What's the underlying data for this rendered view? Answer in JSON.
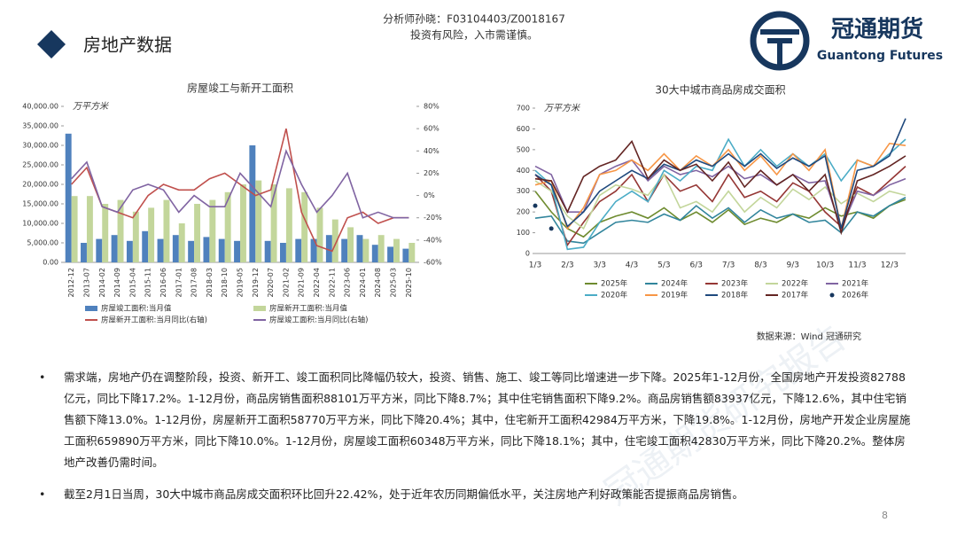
{
  "header": {
    "title": "房地产数据",
    "disclaimer": [
      "分析师孙晓：F03104403/Z0018167",
      "投资有风险，入市需谨慎。"
    ],
    "logo_cn": "冠通期货",
    "logo_en": "Guantong Futures"
  },
  "chart_data": [
    {
      "type": "bar",
      "title": "房屋竣工与新开工面积",
      "ylabel": "万平方米",
      "categories": [
        "2012-12",
        "2013-07",
        "2014-02",
        "2014-09",
        "2015-04",
        "2015-11",
        "2016-06",
        "2017-01",
        "2017-08",
        "2018-03",
        "2018-10",
        "2019-05",
        "2019-12",
        "2020-07",
        "2021-02",
        "2021-09",
        "2022-04",
        "2022-11",
        "2023-06",
        "2024-01",
        "2024-08",
        "2025-03",
        "2025-10"
      ],
      "series": [
        {
          "name": "房屋竣工面积:当月值",
          "type": "bar",
          "color": "#4f81bd",
          "values": [
            33000,
            5000,
            6000,
            7000,
            5500,
            8000,
            6000,
            7000,
            5500,
            6500,
            6000,
            5500,
            30000,
            5500,
            5000,
            6000,
            6000,
            7000,
            6000,
            7000,
            4500,
            4000,
            3500
          ]
        },
        {
          "name": "房屋新开工面积:当月值",
          "type": "bar",
          "color": "#c3d69b",
          "values": [
            17000,
            17000,
            15000,
            16000,
            13000,
            14000,
            16000,
            10000,
            15000,
            16000,
            18000,
            20000,
            21000,
            20000,
            19000,
            18000,
            14000,
            11000,
            9000,
            6000,
            7000,
            6000,
            5000
          ]
        },
        {
          "name": "房屋新开工面积:当月同比(右轴)",
          "type": "line",
          "axis": "y2",
          "color": "#c0504d",
          "values": [
            10,
            25,
            -10,
            -15,
            -20,
            0,
            10,
            5,
            5,
            15,
            20,
            10,
            0,
            5,
            60,
            -15,
            -45,
            -50,
            -20,
            -15,
            -25,
            -20,
            -20
          ]
        },
        {
          "name": "房屋竣工面积:当月同比(右轴)",
          "type": "line",
          "axis": "y2",
          "color": "#8064a2",
          "values": [
            15,
            30,
            -10,
            -15,
            5,
            10,
            5,
            -15,
            0,
            -10,
            -10,
            20,
            5,
            -10,
            40,
            10,
            -15,
            0,
            20,
            -20,
            -15,
            -20,
            -20
          ]
        }
      ],
      "ylim": [
        0,
        40000
      ],
      "yticks": [
        {
          "value": 0,
          "label": "0.00"
        },
        {
          "value": 5000,
          "label": "5,000.00"
        },
        {
          "value": 10000,
          "label": "10,000.00"
        },
        {
          "value": 15000,
          "label": "15,000.00"
        },
        {
          "value": 20000,
          "label": "20,000.00"
        },
        {
          "value": 25000,
          "label": "25,000.00"
        },
        {
          "value": 30000,
          "label": "30,000.00"
        },
        {
          "value": 35000,
          "label": "35,000.00"
        },
        {
          "value": 40000,
          "label": "40,000.00"
        }
      ],
      "y2lim": [
        -60,
        80
      ],
      "y2ticks": [
        {
          "value": -60,
          "label": "-60%"
        },
        {
          "value": -40,
          "label": "-40%"
        },
        {
          "value": -20,
          "label": "-20%"
        },
        {
          "value": 0,
          "label": "0%"
        },
        {
          "value": 20,
          "label": "20%"
        },
        {
          "value": 40,
          "label": "40%"
        },
        {
          "value": 60,
          "label": "60%"
        },
        {
          "value": 80,
          "label": "80%"
        }
      ],
      "legend_columns": 2,
      "grid": false
    },
    {
      "type": "line",
      "title": "30大中城市商品房成交面积",
      "ylabel": "万平方米",
      "categories": [
        "1/3",
        null,
        "2/3",
        null,
        "3/3",
        null,
        "4/3",
        null,
        "5/3",
        null,
        "6/3",
        null,
        "7/3",
        null,
        "8/3",
        null,
        "9/3",
        null,
        "10/3",
        null,
        "11/3",
        null,
        "12/3",
        null
      ],
      "series": [
        {
          "name": "2025年",
          "color": "#6e8b2f",
          "values": [
            300,
            200,
            120,
            80,
            150,
            180,
            200,
            170,
            220,
            160,
            200,
            150,
            210,
            140,
            170,
            150,
            190,
            170,
            220,
            180,
            200,
            170,
            230,
            260
          ]
        },
        {
          "name": "2024年",
          "color": "#31859c",
          "values": [
            170,
            180,
            60,
            50,
            100,
            150,
            160,
            150,
            190,
            160,
            230,
            170,
            220,
            150,
            210,
            170,
            190,
            150,
            160,
            100,
            200,
            180,
            230,
            270
          ]
        },
        {
          "name": "2023年",
          "color": "#953735",
          "values": [
            380,
            300,
            40,
            150,
            250,
            300,
            380,
            250,
            380,
            300,
            330,
            250,
            380,
            270,
            300,
            250,
            340,
            300,
            200,
            130,
            320,
            280,
            350,
            420
          ]
        },
        {
          "name": "2022年",
          "color": "#c3d69b",
          "values": [
            350,
            300,
            180,
            120,
            280,
            330,
            310,
            280,
            380,
            220,
            250,
            200,
            300,
            200,
            270,
            220,
            310,
            260,
            320,
            240,
            290,
            250,
            300,
            280
          ]
        },
        {
          "name": "2021年",
          "color": "#8064a2",
          "values": [
            420,
            380,
            200,
            200,
            380,
            420,
            450,
            350,
            420,
            380,
            400,
            370,
            420,
            360,
            380,
            330,
            380,
            340,
            350,
            120,
            300,
            280,
            330,
            360
          ]
        },
        {
          "name": "2020年",
          "color": "#4bacc6",
          "values": [
            400,
            330,
            20,
            30,
            150,
            250,
            300,
            250,
            400,
            350,
            420,
            400,
            550,
            420,
            500,
            420,
            480,
            420,
            480,
            350,
            450,
            420,
            480,
            550
          ]
        },
        {
          "name": "2019年",
          "color": "#f79646",
          "values": [
            330,
            350,
            120,
            220,
            380,
            400,
            450,
            400,
            480,
            400,
            470,
            420,
            500,
            400,
            470,
            380,
            480,
            400,
            500,
            120,
            450,
            420,
            530,
            520
          ]
        },
        {
          "name": "2018年",
          "color": "#1f497d",
          "values": [
            380,
            330,
            130,
            200,
            300,
            350,
            400,
            360,
            430,
            400,
            450,
            420,
            480,
            420,
            480,
            410,
            460,
            420,
            470,
            120,
            400,
            420,
            470,
            650
          ]
        },
        {
          "name": "2017年",
          "color": "#632523",
          "values": [
            360,
            350,
            200,
            370,
            420,
            450,
            540,
            360,
            450,
            400,
            430,
            350,
            440,
            320,
            400,
            330,
            380,
            300,
            380,
            100,
            350,
            380,
            420,
            470
          ]
        },
        {
          "name": "2026年",
          "type": "scatter",
          "color": "#17375e",
          "values": [
            230,
            120,
            null,
            null,
            null,
            null,
            null,
            null,
            null,
            null,
            null,
            null,
            null,
            null,
            null,
            null,
            null,
            null,
            null,
            null,
            null,
            null,
            null,
            null
          ]
        }
      ],
      "ylim": [
        0,
        700
      ],
      "yticks": [
        0,
        100,
        200,
        300,
        400,
        500,
        600,
        700
      ],
      "legend_columns": 5,
      "grid": false,
      "source": "数据来源：Wind 冠通研究"
    }
  ],
  "bullets": [
    "需求端，房地产仍在调整阶段，投资、新开工、竣工面积同比降幅仍较大，投资、销售、施工、竣工等同比增速进一步下降。2025年1-12月份，全国房地产开发投资82788亿元，同比下降17.2%。1-12月份，商品房销售面积88101万平方米，同比下降8.7%；其中住宅销售面积下降9.2%。商品房销售额83937亿元，下降12.6%，其中住宅销售额下降13.0%。1-12月份，房屋新开工面积58770万平方米，同比下降20.4%；其中，住宅新开工面积42984万平方米，下降19.8%。1-12月份，房地产开发企业房屋施工面积659890万平方米，同比下降10.0%。1-12月份，房屋竣工面积60348万平方米，同比下降18.1%；其中，住宅竣工面积42830万平方米，同比下降20.2%。整体房地产改善仍需时间。",
    "截至2月1日当周，30大中城市商品房成交面积环比回升22.42%，处于近年农历同期偏低水平，关注房地产利好政策能否提振商品房销售。"
  ],
  "watermark": "冠通期货研究报告",
  "page_number": "8"
}
